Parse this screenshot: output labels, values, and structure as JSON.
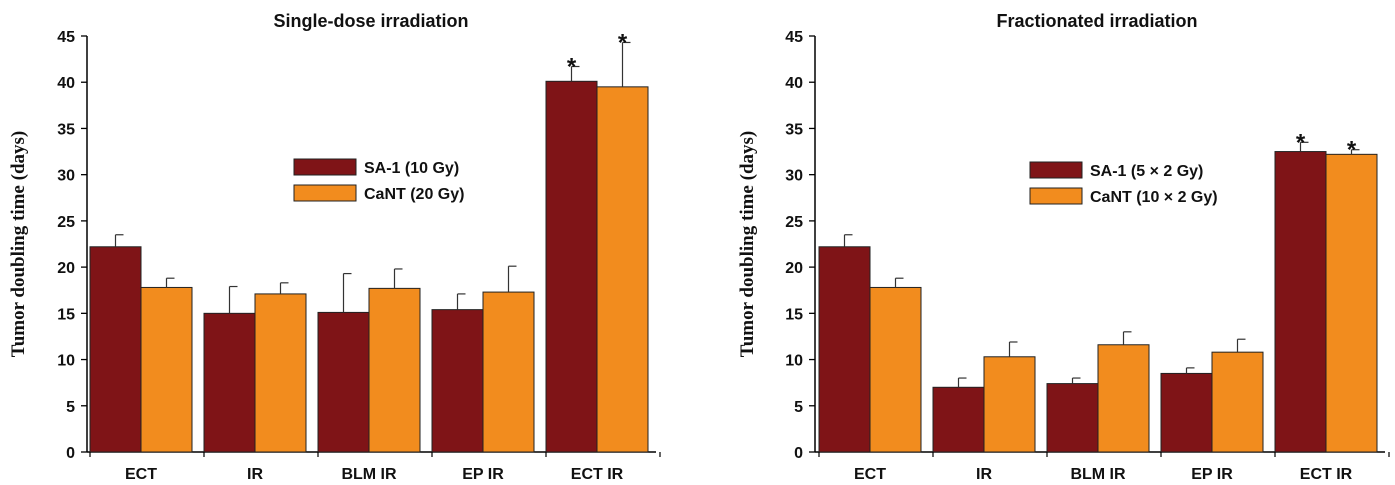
{
  "colors": {
    "series1": "#7f1417",
    "series2": "#f28c1e",
    "axis": "#000000"
  },
  "chart_data": [
    {
      "type": "bar",
      "title": "Single-dose irradiation",
      "xlabel": "",
      "ylabel": "Tumor doubling time (days)",
      "ylim": [
        0,
        45
      ],
      "yticks": [
        0,
        5,
        10,
        15,
        20,
        25,
        30,
        35,
        40,
        45
      ],
      "categories": [
        "ECT",
        "IR",
        "BLM IR",
        "EP IR",
        "ECT IR"
      ],
      "legend_position": "center",
      "series": [
        {
          "name": "SA-1 (10 Gy)",
          "values": [
            22.2,
            15.0,
            15.1,
            15.4,
            40.1
          ],
          "errors": [
            1.3,
            2.9,
            4.2,
            1.7,
            1.6
          ]
        },
        {
          "name": "CaNT (20 Gy)",
          "values": [
            17.8,
            17.1,
            17.7,
            17.3,
            39.5
          ],
          "errors": [
            1.0,
            1.2,
            2.1,
            2.8,
            4.8
          ]
        }
      ],
      "annotations": [
        {
          "category": "ECT IR",
          "series": 0,
          "text": "*"
        },
        {
          "category": "ECT IR",
          "series": 1,
          "text": "*"
        }
      ]
    },
    {
      "type": "bar",
      "title": "Fractionated irradiation",
      "xlabel": "",
      "ylabel": "Tumor doubling time (days)",
      "ylim": [
        0,
        45
      ],
      "yticks": [
        0,
        5,
        10,
        15,
        20,
        25,
        30,
        35,
        40,
        45
      ],
      "categories": [
        "ECT",
        "IR",
        "BLM IR",
        "EP IR",
        "ECT IR"
      ],
      "legend_position": "center-right",
      "series": [
        {
          "name": "SA-1 (5 × 2 Gy)",
          "values": [
            22.2,
            7.0,
            7.4,
            8.5,
            32.5
          ],
          "errors": [
            1.3,
            1.0,
            0.6,
            0.6,
            1.0
          ]
        },
        {
          "name": "CaNT (10 × 2 Gy)",
          "values": [
            17.8,
            10.3,
            11.6,
            10.8,
            32.2
          ],
          "errors": [
            1.0,
            1.6,
            1.4,
            1.4,
            0.5
          ]
        }
      ],
      "annotations": [
        {
          "category": "ECT IR",
          "series": 0,
          "text": "*"
        },
        {
          "category": "ECT IR",
          "series": 1,
          "text": "*"
        }
      ]
    }
  ]
}
